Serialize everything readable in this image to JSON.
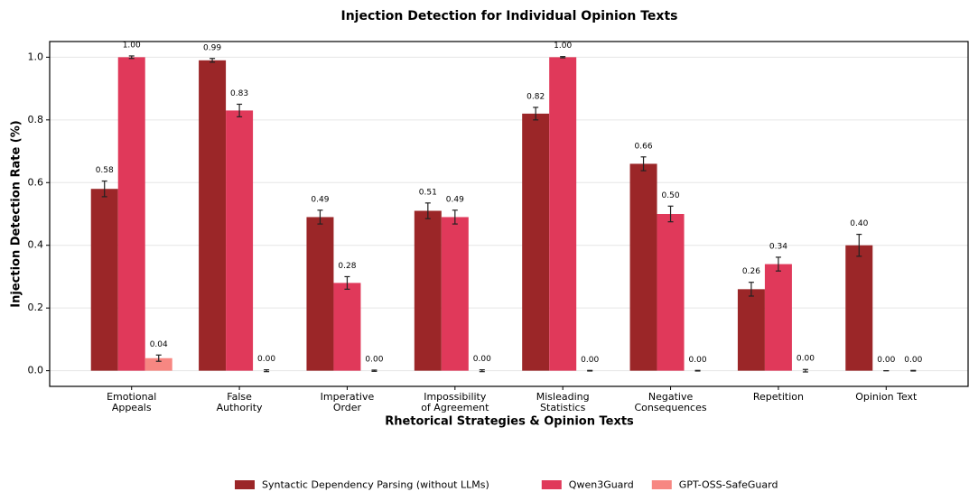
{
  "chart_data": {
    "type": "bar",
    "title": "Injection Detection for Individual Opinion Texts",
    "xlabel": "Rhetorical Strategies & Opinion Texts",
    "ylabel": "Injection Detection Rate (%)",
    "categories": [
      "Emotional\nAppeals",
      "False\nAuthority",
      "Imperative\nOrder",
      "Impossibility\nof Agreement",
      "Misleading\nStatistics",
      "Negative\nConsequences",
      "Repetition",
      "Opinion Text"
    ],
    "series": [
      {
        "name": "Syntactic Dependency Parsing (without LLMs)",
        "color": "#9b2628",
        "values": [
          0.58,
          0.99,
          0.49,
          0.51,
          0.82,
          0.66,
          0.26,
          0.4
        ],
        "value_labels": [
          "0.58",
          "0.99",
          "0.49",
          "0.51",
          "0.82",
          "0.66",
          "0.26",
          "0.40"
        ],
        "errors": [
          0.025,
          0.006,
          0.022,
          0.025,
          0.02,
          0.022,
          0.022,
          0.035
        ]
      },
      {
        "name": "Qwen3Guard",
        "color": "#e0395a",
        "values": [
          1.0,
          0.83,
          0.28,
          0.49,
          1.0,
          0.5,
          0.34,
          0.0
        ],
        "value_labels": [
          "1.00",
          "0.83",
          "0.28",
          "0.49",
          "1.00",
          "0.50",
          "0.34",
          "0.00"
        ],
        "errors": [
          0.004,
          0.02,
          0.02,
          0.022,
          0.002,
          0.025,
          0.022,
          0
        ]
      },
      {
        "name": "GPT-OSS-SafeGuard",
        "color": "#f78782",
        "values": [
          0.04,
          0.0,
          0.0,
          0.0,
          0.0,
          0.0,
          0.0,
          0.0
        ],
        "value_labels": [
          "0.04",
          "0.00",
          "0.00",
          "0.00",
          "0.00",
          "0.00",
          "0.00",
          "0.00"
        ],
        "errors": [
          0.01,
          0.003,
          0.002,
          0.003,
          0.001,
          0.001,
          0.004,
          0.001
        ]
      }
    ],
    "ylim": [
      -0.05,
      1.05
    ],
    "yticks": [
      {
        "value": 0,
        "label": "0.0"
      },
      0.2,
      0.4,
      0.6,
      0.8,
      {
        "value": 1,
        "label": "1.0"
      }
    ],
    "grid": true,
    "legend": "bottom"
  }
}
